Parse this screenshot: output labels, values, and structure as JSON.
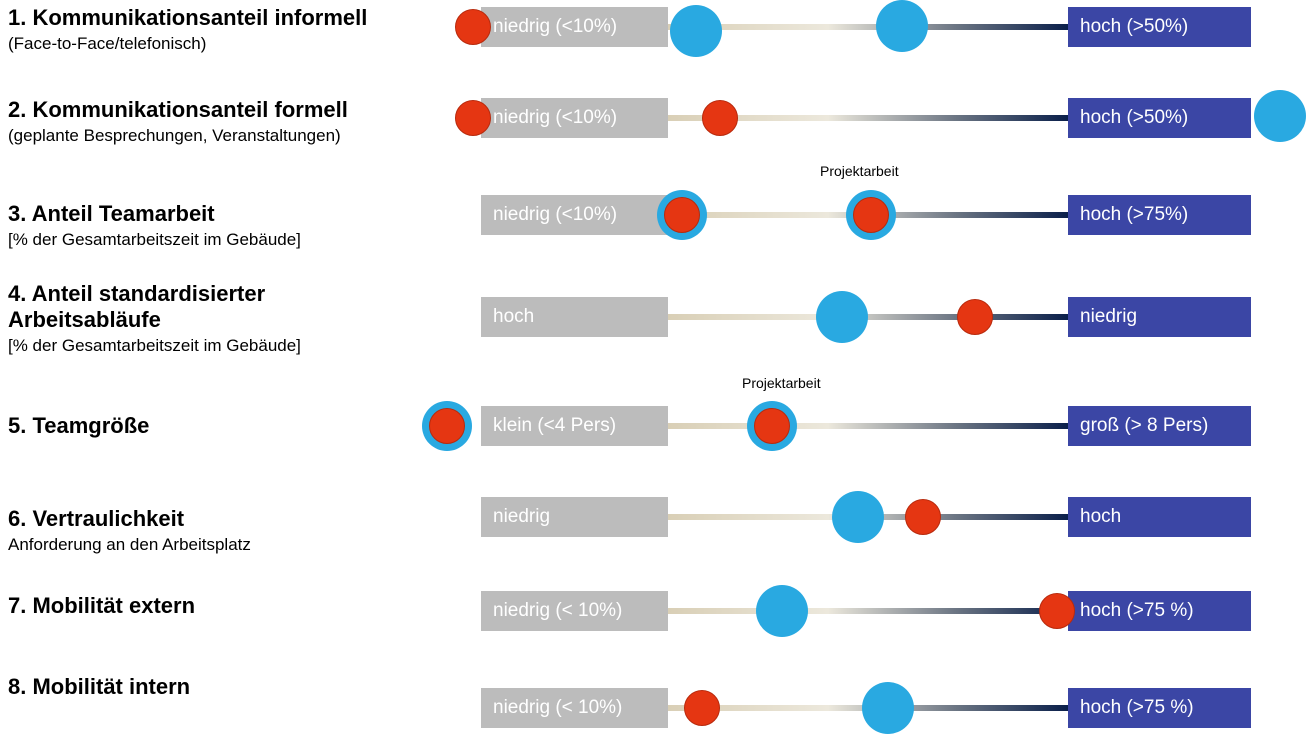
{
  "colors": {
    "gray_box": "#bcbcbc",
    "blue_box": "#3b46a5",
    "blue_dot": "#29a9e1",
    "red_dot": "#e53612"
  },
  "rows": [
    {
      "title": "1.  Kommunikationsanteil informell",
      "subtitle": "(Face-to-Face/telefonisch)",
      "left": "niedrig (<10%)",
      "right": "hoch (>50%)"
    },
    {
      "title": "2.  Kommunikationsanteil formell",
      "subtitle": "(geplante Besprechungen, Veranstaltungen)",
      "left": "niedrig (<10%)",
      "right": "hoch (>50%)"
    },
    {
      "title": "3.  Anteil Teamarbeit",
      "subtitle": "[% der Gesamtarbeitszeit im Gebäude]",
      "left": "niedrig (<10%)",
      "right": "hoch (>75%)",
      "note": "Projektarbeit"
    },
    {
      "title": "4.  Anteil standardisierter",
      "title2": "Arbeitsabläufe",
      "subtitle": "[% der Gesamtarbeitszeit im Gebäude]",
      "left": "hoch",
      "right": "niedrig"
    },
    {
      "title": "5.  Teamgröße",
      "left": "klein (<4 Pers)",
      "right": "groß (> 8 Pers)",
      "note": "Projektarbeit"
    },
    {
      "title": "6.  Vertraulichkeit",
      "subtitle": "Anforderung an den Arbeitsplatz",
      "left": "niedrig",
      "right": "hoch"
    },
    {
      "title": "7.  Mobilität extern",
      "left": "niedrig (< 10%)",
      "right": "hoch (>75 %)"
    },
    {
      "title": "8.  Mobilität intern",
      "left": "niedrig (< 10%)",
      "right": "hoch (>75 %)"
    }
  ]
}
